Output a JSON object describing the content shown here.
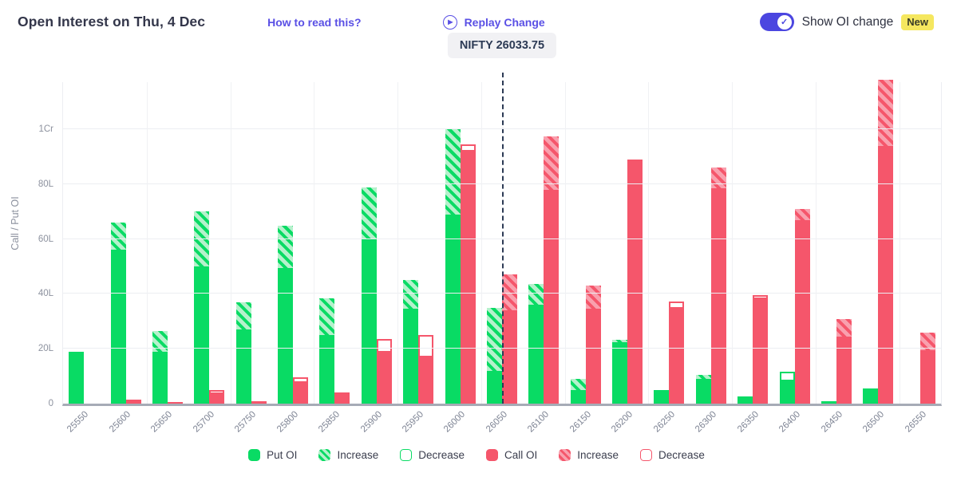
{
  "header": {
    "title": "Open Interest on Thu, 4 Dec",
    "how_to_read": "How to read this?",
    "replay": "Replay Change",
    "show_oi_change": "Show OI change",
    "new_badge": "New",
    "toggle_on": true
  },
  "nifty_label": "NIFTY 26033.75",
  "colors": {
    "put_green": "#09DB64",
    "put_green_light": "#B5F1CC",
    "call_red": "#F5566B",
    "call_red_light": "#F9A0AE",
    "accent_purple": "#5A50E5",
    "toggle_indigo": "#4B46E0",
    "new_badge_bg": "#F5E75F",
    "nifty_line": "#2C3A55",
    "axis_text": "#8C919E"
  },
  "legend": [
    {
      "label": "Put OI",
      "swatch": "green-solid"
    },
    {
      "label": "Increase",
      "swatch": "green-hatch"
    },
    {
      "label": "Decrease",
      "swatch": "green-outline"
    },
    {
      "label": "Call OI",
      "swatch": "red-solid"
    },
    {
      "label": "Increase",
      "swatch": "red-hatch"
    },
    {
      "label": "Decrease",
      "swatch": "red-outline"
    }
  ],
  "chart_data": {
    "type": "bar",
    "title": "Open Interest on Thu, 4 Dec",
    "ylabel": "Call / Put OI",
    "yticks": [
      {
        "label": "0",
        "value": 0
      },
      {
        "label": "20L",
        "value": 20
      },
      {
        "label": "40L",
        "value": 40
      },
      {
        "label": "60L",
        "value": 60
      },
      {
        "label": "80L",
        "value": 80
      },
      {
        "label": "1Cr",
        "value": 100
      }
    ],
    "ylim_lakh": [
      0,
      118
    ],
    "units": "lakh; 1Cr = 100L; values estimated from bar heights",
    "nifty_spot": 26033.75,
    "nifty_line_at_strike": "26050",
    "change_semantics": "total = current OI for increase/none; for decrease, total = current OI and change = outlined previous-OI excess above it",
    "strikes": [
      {
        "strike": "25550",
        "put_total": 19,
        "put_change": 0,
        "put_change_type": "none",
        "call_total": 0,
        "call_change": 0,
        "call_change_type": "none"
      },
      {
        "strike": "25600",
        "put_total": 66,
        "put_change": 10,
        "put_change_type": "increase",
        "call_total": 1.5,
        "call_change": 0,
        "call_change_type": "none"
      },
      {
        "strike": "25650",
        "put_total": 26.5,
        "put_change": 7.5,
        "put_change_type": "increase",
        "call_total": 0.7,
        "call_change": 0,
        "call_change_type": "none"
      },
      {
        "strike": "25700",
        "put_total": 70,
        "put_change": 20,
        "put_change_type": "increase",
        "call_total": 3.5,
        "call_change": 1.5,
        "call_change_type": "decrease"
      },
      {
        "strike": "25750",
        "put_total": 37,
        "put_change": 10,
        "put_change_type": "increase",
        "call_total": 1,
        "call_change": 0,
        "call_change_type": "none"
      },
      {
        "strike": "25800",
        "put_total": 65,
        "put_change": 15.5,
        "put_change_type": "increase",
        "call_total": 7.5,
        "call_change": 2,
        "call_change_type": "decrease"
      },
      {
        "strike": "25850",
        "put_total": 38.5,
        "put_change": 13.5,
        "put_change_type": "increase",
        "call_total": 4,
        "call_change": 0,
        "call_change_type": "none"
      },
      {
        "strike": "25900",
        "put_total": 79,
        "put_change": 19,
        "put_change_type": "increase",
        "call_total": 18.5,
        "call_change": 5,
        "call_change_type": "decrease"
      },
      {
        "strike": "25950",
        "put_total": 45,
        "put_change": 10.5,
        "put_change_type": "increase",
        "call_total": 17,
        "call_change": 8,
        "call_change_type": "decrease"
      },
      {
        "strike": "26000",
        "put_total": 100,
        "put_change": 31,
        "put_change_type": "increase",
        "call_total": 92,
        "call_change": 2.5,
        "call_change_type": "decrease"
      },
      {
        "strike": "26050",
        "put_total": 35,
        "put_change": 23,
        "put_change_type": "increase",
        "call_total": 47,
        "call_change": 13,
        "call_change_type": "increase"
      },
      {
        "strike": "26100",
        "put_total": 43.5,
        "put_change": 7.5,
        "put_change_type": "increase",
        "call_total": 97.5,
        "call_change": 19.5,
        "call_change_type": "increase"
      },
      {
        "strike": "26150",
        "put_total": 9,
        "put_change": 4,
        "put_change_type": "increase",
        "call_total": 43,
        "call_change": 8.5,
        "call_change_type": "increase"
      },
      {
        "strike": "26200",
        "put_total": 23.5,
        "put_change": 1,
        "put_change_type": "increase",
        "call_total": 89,
        "call_change": 0,
        "call_change_type": "none"
      },
      {
        "strike": "26250",
        "put_total": 5,
        "put_change": 0,
        "put_change_type": "none",
        "call_total": 34.5,
        "call_change": 2.5,
        "call_change_type": "decrease"
      },
      {
        "strike": "26300",
        "put_total": 10.5,
        "put_change": 1.5,
        "put_change_type": "increase",
        "call_total": 86,
        "call_change": 7.5,
        "call_change_type": "increase"
      },
      {
        "strike": "26350",
        "put_total": 2.5,
        "put_change": 0,
        "put_change_type": "none",
        "call_total": 38,
        "call_change": 1.5,
        "call_change_type": "decrease"
      },
      {
        "strike": "26400",
        "put_total": 8,
        "put_change": 3.5,
        "put_change_type": "decrease",
        "call_total": 71,
        "call_change": 4,
        "call_change_type": "increase"
      },
      {
        "strike": "26450",
        "put_total": 1,
        "put_change": 0,
        "put_change_type": "none",
        "call_total": 31,
        "call_change": 6.5,
        "call_change_type": "increase"
      },
      {
        "strike": "26500",
        "put_total": 5.5,
        "put_change": 0,
        "put_change_type": "none",
        "call_total": 118,
        "call_change": 24,
        "call_change_type": "increase"
      },
      {
        "strike": "26550",
        "put_total": 0,
        "put_change": 0,
        "put_change_type": "none",
        "call_total": 26,
        "call_change": 6.5,
        "call_change_type": "increase"
      }
    ]
  }
}
